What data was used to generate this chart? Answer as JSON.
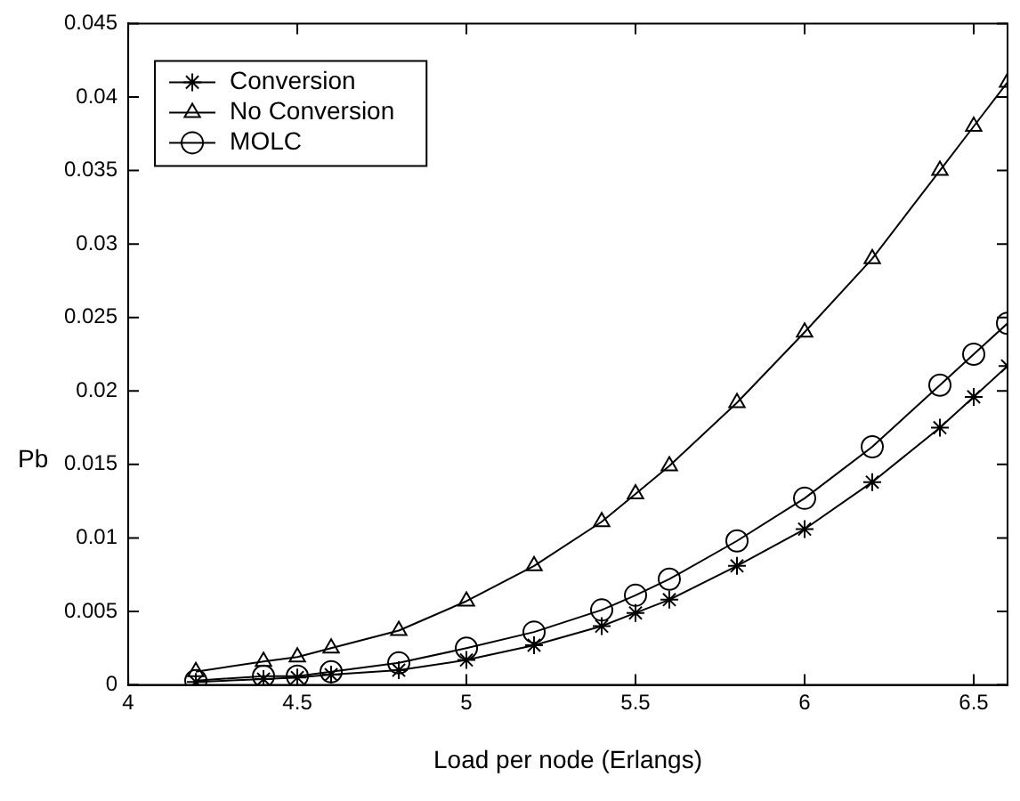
{
  "chart_data": {
    "type": "line",
    "xlabel": "Load per node (Erlangs)",
    "ylabel": "Pb",
    "x": [
      4.2,
      4.4,
      4.5,
      4.6,
      4.8,
      5.0,
      5.2,
      5.4,
      5.5,
      5.6,
      5.8,
      6.0,
      6.2,
      6.4,
      6.5,
      6.6
    ],
    "series": [
      {
        "name": "Conversion",
        "color": "#000000",
        "marker": "cross",
        "values": [
          0.0002,
          0.0004,
          0.0005,
          0.0007,
          0.001,
          0.0017,
          0.0027,
          0.004,
          0.0049,
          0.0058,
          0.0081,
          0.0106,
          0.0138,
          0.0175,
          0.0196,
          0.0217
        ]
      },
      {
        "name": "No Conversion",
        "color": "#000000",
        "marker": "triangle",
        "values": [
          0.0009,
          0.0016,
          0.0019,
          0.0025,
          0.0037,
          0.0057,
          0.0081,
          0.0111,
          0.013,
          0.0149,
          0.0192,
          0.024,
          0.029,
          0.035,
          0.038,
          0.041
        ]
      },
      {
        "name": "MOLC",
        "color": "#000000",
        "marker": "circle",
        "values": [
          0.0003,
          0.0006,
          0.0006,
          0.0009,
          0.0015,
          0.0025,
          0.0036,
          0.0051,
          0.0061,
          0.0072,
          0.0098,
          0.0127,
          0.0162,
          0.0204,
          0.0225,
          0.0246
        ]
      }
    ],
    "xlim": [
      4,
      6.6
    ],
    "xticks": [
      4,
      4.5,
      5,
      5.5,
      6,
      6.5
    ],
    "ylim": [
      0,
      0.045
    ],
    "yticks": [
      0,
      0.005,
      0.01,
      0.015,
      0.02,
      0.025,
      0.03,
      0.035,
      0.04,
      0.045
    ],
    "grid": false,
    "legend": "top left",
    "line_style": "solid"
  }
}
